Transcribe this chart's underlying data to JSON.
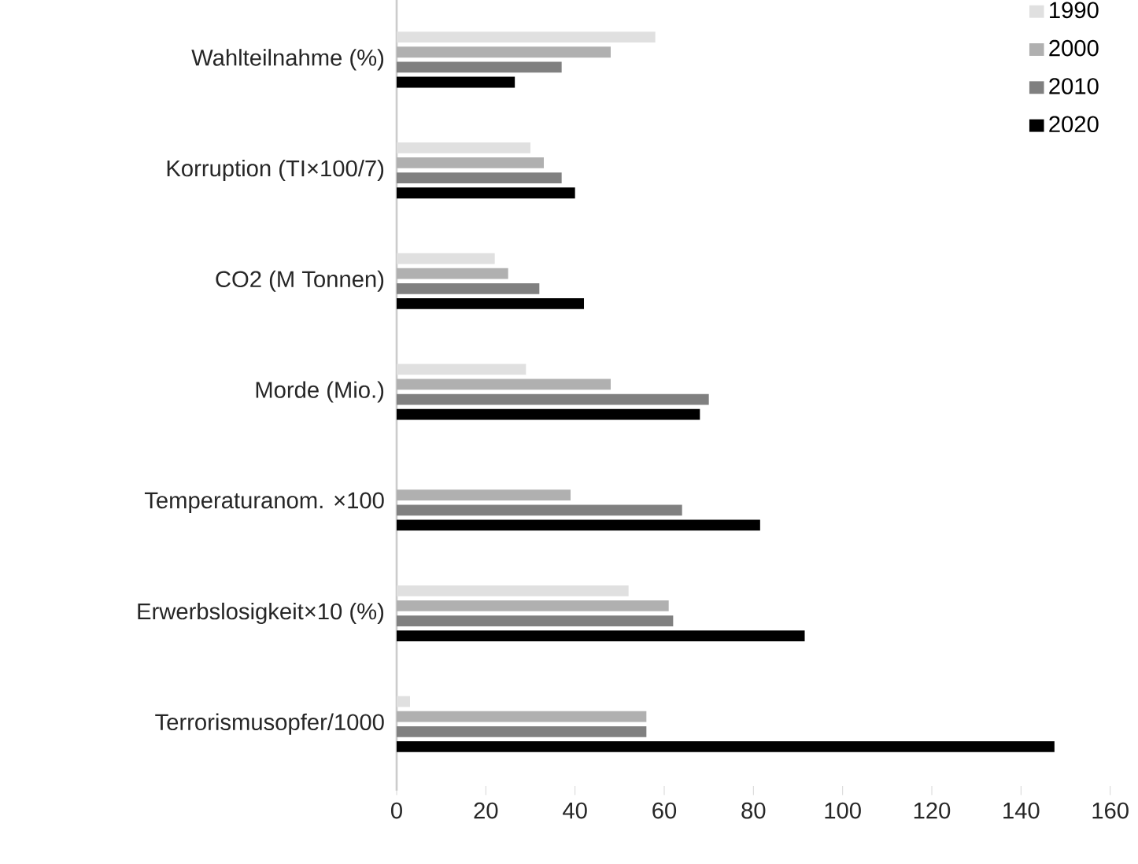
{
  "chart_data": {
    "type": "bar",
    "orientation": "horizontal",
    "categories": [
      "Wahlteilnahme (%)",
      "Korruption (TI×100/7)",
      "CO2 (M Tonnen)",
      "Morde (Mio.)",
      "Temperaturanom. ×100",
      "Erwerbslosigkeit×10 (%)",
      "Terrorismusopfer/1000"
    ],
    "series": [
      {
        "name": "1990",
        "color": "#e0e0e0",
        "values": [
          58,
          30,
          22,
          29,
          null,
          52,
          3
        ]
      },
      {
        "name": "2000",
        "color": "#b0b0b0",
        "values": [
          48,
          33,
          25,
          48,
          39,
          61,
          56
        ]
      },
      {
        "name": "2010",
        "color": "#808080",
        "values": [
          37,
          37,
          32,
          70,
          64,
          62,
          56
        ]
      },
      {
        "name": "2020",
        "color": "#000000",
        "values": [
          26.5,
          40,
          42,
          68,
          81.5,
          91.5,
          147.5
        ]
      }
    ],
    "xlim": [
      0,
      160
    ],
    "xticks": [
      0,
      20,
      40,
      60,
      80,
      100,
      120,
      140,
      160
    ],
    "grid": false,
    "legend": "top right"
  }
}
